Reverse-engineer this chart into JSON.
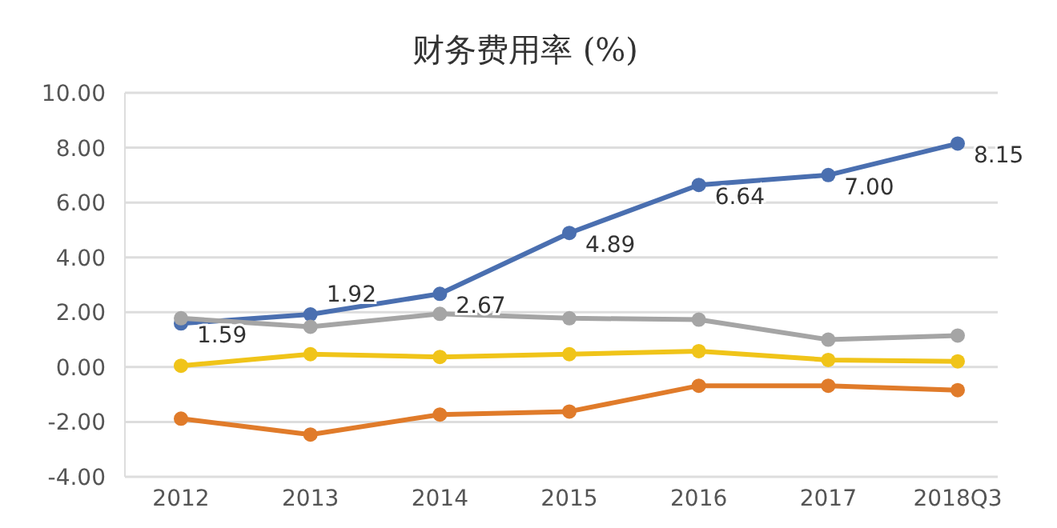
{
  "chart_data": {
    "type": "line",
    "title": "财务费用率 (%)",
    "categories": [
      "2012",
      "2013",
      "2014",
      "2015",
      "2016",
      "2017",
      "2018Q3"
    ],
    "series": [
      {
        "color": "#4a6fb0",
        "values": [
          1.59,
          1.92,
          2.67,
          4.89,
          6.64,
          7.0,
          8.15
        ],
        "value_labels": [
          "1.59",
          "1.92",
          "2.67",
          "4.89",
          "6.64",
          "7.00",
          "8.15"
        ]
      },
      {
        "color": "#a5a5a5",
        "values": [
          1.78,
          1.47,
          1.94,
          1.78,
          1.73,
          1.0,
          1.15
        ]
      },
      {
        "color": "#f0c419",
        "values": [
          0.05,
          0.47,
          0.37,
          0.47,
          0.58,
          0.26,
          0.21
        ]
      },
      {
        "color": "#e07b2a",
        "values": [
          -1.88,
          -2.46,
          -1.73,
          -1.62,
          -0.68,
          -0.68,
          -0.84
        ]
      }
    ],
    "ylim": [
      -4,
      10
    ],
    "yticks": [
      {
        "value": -4,
        "label": "-4.00"
      },
      {
        "value": -2,
        "label": "-2.00"
      },
      {
        "value": 0,
        "label": "0.00"
      },
      {
        "value": 2,
        "label": "2.00"
      },
      {
        "value": 4,
        "label": "4.00"
      },
      {
        "value": 6,
        "label": "6.00"
      },
      {
        "value": 8,
        "label": "8.00"
      },
      {
        "value": 10,
        "label": "10.00"
      }
    ],
    "grid": "y",
    "marker": "circle",
    "line_style": "solid"
  }
}
